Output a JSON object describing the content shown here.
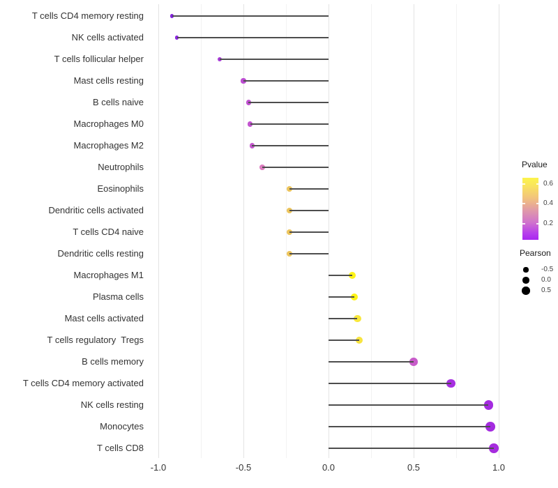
{
  "chart_data": {
    "type": "lollipop",
    "title": "",
    "xlabel": "",
    "ylabel": "",
    "orientation": "horizontal",
    "xlim": [
      -1.06,
      1.06
    ],
    "grid": "vertical major and minor gridlines, light grey, white background",
    "x_major_ticks": [
      -1.0,
      -0.5,
      0.0,
      0.5,
      1.0
    ],
    "x_tick_labels": [
      "-1.0",
      "-0.5",
      "0.0",
      "0.5",
      "1.0"
    ],
    "x_minor_ticks": [
      -0.75,
      -0.25,
      0.25,
      0.75
    ],
    "points": [
      {
        "category": "T cells CD4 memory resting",
        "pearson": -0.92,
        "color": "#8222DD"
      },
      {
        "category": "NK cells activated",
        "pearson": -0.89,
        "color": "#8C26E0"
      },
      {
        "category": "T cells follicular helper",
        "pearson": -0.64,
        "color": "#A93BD9"
      },
      {
        "category": "Mast cells resting",
        "pearson": -0.5,
        "color": "#BC4CD2"
      },
      {
        "category": "B cells naive",
        "pearson": -0.47,
        "color": "#C152D0"
      },
      {
        "category": "Macrophages M0",
        "pearson": -0.46,
        "color": "#C254CF"
      },
      {
        "category": "Macrophages M2",
        "pearson": -0.45,
        "color": "#C559CE"
      },
      {
        "category": "Neutrophils",
        "pearson": -0.39,
        "color": "#DC7CBF"
      },
      {
        "category": "Eosinophils",
        "pearson": -0.23,
        "color": "#ECC45C"
      },
      {
        "category": "Dendritic cells activated",
        "pearson": -0.23,
        "color": "#ECC45C"
      },
      {
        "category": "T cells CD4 naive",
        "pearson": -0.23,
        "color": "#ECC45C"
      },
      {
        "category": "Dendritic cells resting",
        "pearson": -0.23,
        "color": "#ECC45C"
      },
      {
        "category": "Macrophages M1",
        "pearson": 0.14,
        "color": "#FDF316"
      },
      {
        "category": "Plasma cells",
        "pearson": 0.15,
        "color": "#FDF316"
      },
      {
        "category": "Mast cells activated",
        "pearson": 0.17,
        "color": "#F8E73B"
      },
      {
        "category": "T cells regulatory  Tregs",
        "pearson": 0.18,
        "color": "#F7E440"
      },
      {
        "category": "B cells memory",
        "pearson": 0.5,
        "color": "#C75BC9"
      },
      {
        "category": "T cells CD4 memory activated",
        "pearson": 0.72,
        "color": "#A72FE1"
      },
      {
        "category": "NK cells resting",
        "pearson": 0.94,
        "color": "#A42BE0"
      },
      {
        "category": "Monocytes",
        "pearson": 0.95,
        "color": "#A42BE0"
      },
      {
        "category": "T cells CD8",
        "pearson": 0.97,
        "color": "#A62CDE"
      }
    ],
    "legend": {
      "pvalue": {
        "title": "Pvalue",
        "tick_labels": [
          "0.6",
          "0.4",
          "0.2"
        ],
        "gradient_top_color": "#FCF44B",
        "gradient_bottom_color": "#A826F0",
        "range_approx": [
          0.04,
          0.66
        ]
      },
      "pearson": {
        "title": "Pearson",
        "entries": [
          {
            "label": "-0.5",
            "value": -0.5
          },
          {
            "label": "0.0",
            "value": 0.0
          },
          {
            "label": "0.5",
            "value": 0.5
          }
        ],
        "dot_color": "#000000"
      }
    },
    "colors": {
      "segment": "#4d4d4d",
      "grid_major": "#e3e3e3",
      "grid_minor": "#f2f2f2",
      "axis_text": "#333333"
    }
  }
}
